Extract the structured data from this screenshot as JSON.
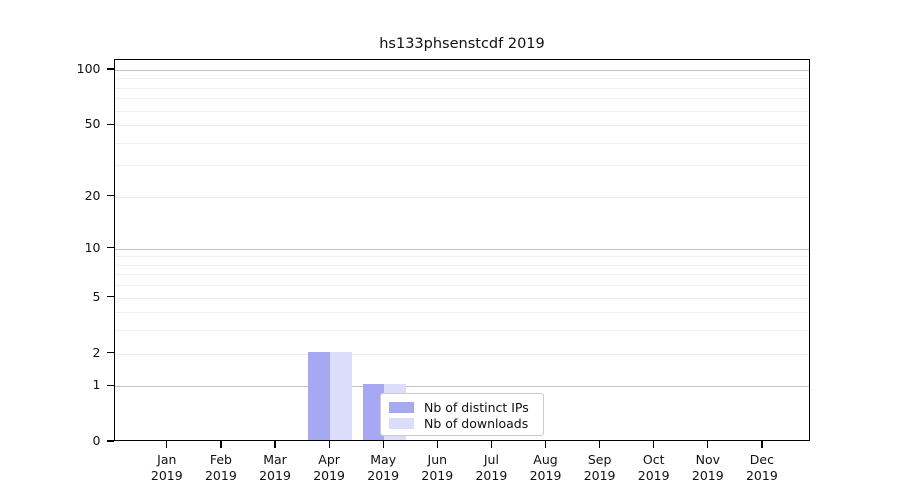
{
  "title": "hs133phsenstcdf 2019",
  "chart_data": {
    "type": "bar",
    "title": "hs133phsenstcdf 2019",
    "categories": [
      "Jan",
      "Feb",
      "Mar",
      "Apr",
      "May",
      "Jun",
      "Jul",
      "Aug",
      "Sep",
      "Oct",
      "Nov",
      "Dec"
    ],
    "year": "2019",
    "series": [
      {
        "name": "Nb of distinct IPs",
        "color": "#a7a8f2",
        "values": [
          0,
          0,
          0,
          2,
          1,
          0,
          0,
          0,
          0,
          0,
          0,
          0
        ]
      },
      {
        "name": "Nb of downloads",
        "color": "#dcddfa",
        "values": [
          0,
          0,
          0,
          2,
          1,
          0,
          0,
          0,
          0,
          0,
          0,
          0
        ]
      }
    ],
    "xlabel": "",
    "ylabel": "",
    "yscale": "log1p",
    "ylim": [
      0,
      113
    ],
    "yticks": [
      0,
      1,
      2,
      5,
      10,
      20,
      50,
      100
    ],
    "emphasized_gridlines": [
      1,
      10,
      100
    ],
    "minor_gridlines": [
      3,
      4,
      6,
      7,
      8,
      9,
      30,
      40,
      60,
      70,
      80,
      90
    ],
    "grid": "horizontal",
    "legend_position": "lower center"
  },
  "legend": {
    "items": [
      {
        "label": "Nb of distinct IPs",
        "color": "#a7a8f2"
      },
      {
        "label": "Nb of downloads",
        "color": "#dcddfa"
      }
    ]
  }
}
